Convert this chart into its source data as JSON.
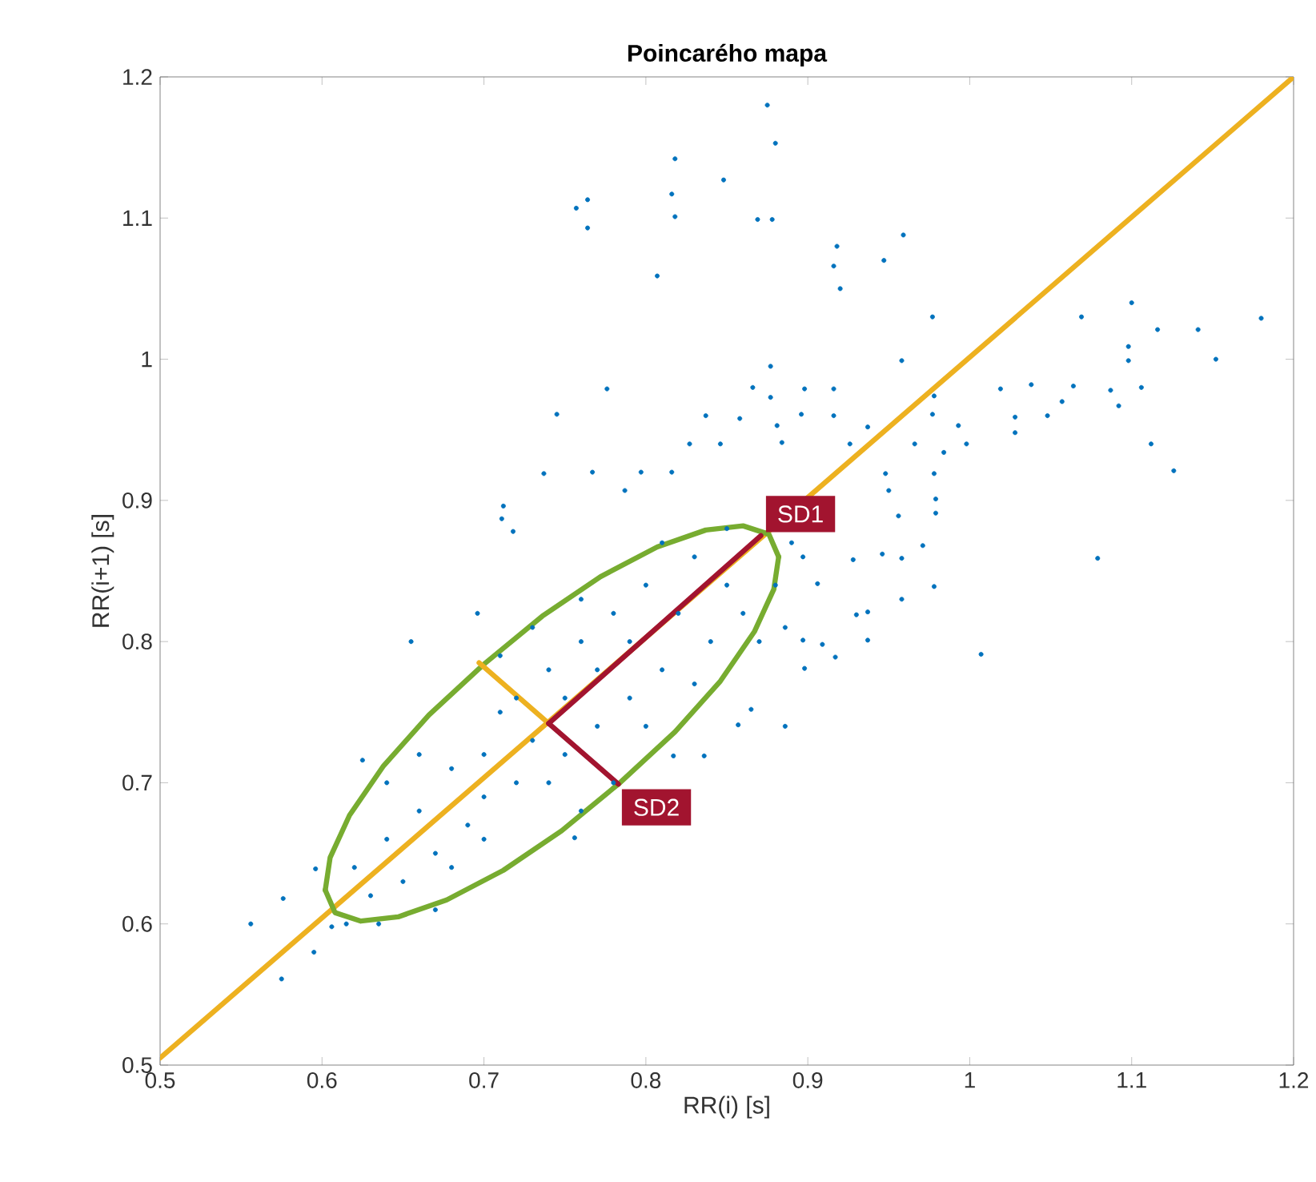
{
  "chart_data": {
    "type": "scatter",
    "title": "Poincarého mapa",
    "xlabel": "RR(i) [s]",
    "ylabel": "RR(i+1) [s]",
    "xlim": [
      0.5,
      1.2
    ],
    "ylim": [
      0.5,
      1.2
    ],
    "xticks": [
      0.5,
      0.6,
      0.7,
      0.8,
      0.9,
      1,
      1.1,
      1.2
    ],
    "yticks": [
      0.5,
      0.6,
      0.7,
      0.8,
      0.9,
      1,
      1.1,
      1.2
    ],
    "series": [
      {
        "color": "#0072bd",
        "x": [
          0.875,
          0.88,
          0.818,
          0.848,
          0.757,
          0.764,
          0.764,
          0.816,
          0.818,
          0.869,
          0.878,
          0.807,
          0.918,
          0.916,
          0.92,
          0.947,
          0.959,
          0.977,
          1.069,
          1.1,
          1.116,
          1.141,
          1.18,
          1.098,
          1.098,
          1.152,
          0.958,
          1.019,
          1.038,
          1.064,
          1.087,
          1.106,
          1.092,
          1.057,
          1.048,
          1.028,
          1.028,
          1.112,
          1.126,
          1.079,
          1.007,
          0.998,
          0.993,
          0.978,
          0.977,
          0.984,
          0.966,
          0.978,
          0.979,
          0.979,
          0.971,
          0.978,
          0.958,
          0.937,
          0.93,
          0.937,
          0.958,
          0.946,
          0.928,
          0.956,
          0.95,
          0.948,
          0.937,
          0.926,
          0.916,
          0.916,
          0.896,
          0.898,
          0.877,
          0.866,
          0.877,
          0.858,
          0.837,
          0.776,
          0.745,
          0.827,
          0.846,
          0.881,
          0.884,
          0.737,
          0.767,
          0.787,
          0.797,
          0.816,
          0.712,
          0.711,
          0.718,
          0.897,
          0.909,
          0.898,
          0.917,
          0.886,
          0.906,
          0.897,
          0.556,
          0.575,
          0.576,
          0.595,
          0.596,
          0.606,
          0.615,
          0.635,
          0.625,
          0.655,
          0.696,
          0.756,
          0.836,
          0.817,
          0.857,
          0.865,
          0.886,
          0.63,
          0.64,
          0.65,
          0.66,
          0.67,
          0.68,
          0.69,
          0.7,
          0.7,
          0.71,
          0.72,
          0.72,
          0.73,
          0.74,
          0.75,
          0.75,
          0.76,
          0.77,
          0.77,
          0.78,
          0.79,
          0.79,
          0.8,
          0.81,
          0.82,
          0.83,
          0.84,
          0.85,
          0.86,
          0.66,
          0.68,
          0.71,
          0.74,
          0.76,
          0.8,
          0.83,
          0.85,
          0.87,
          0.88,
          0.64,
          0.7,
          0.78,
          0.73,
          0.81,
          0.89,
          0.62,
          0.67,
          0.76
        ],
        "values": [
          1.18,
          1.153,
          1.142,
          1.127,
          1.107,
          1.113,
          1.093,
          1.117,
          1.101,
          1.099,
          1.099,
          1.059,
          1.08,
          1.066,
          1.05,
          1.07,
          1.088,
          1.03,
          1.03,
          1.04,
          1.021,
          1.021,
          1.029,
          1.009,
          0.999,
          1.0,
          0.999,
          0.979,
          0.982,
          0.981,
          0.978,
          0.98,
          0.967,
          0.97,
          0.96,
          0.959,
          0.948,
          0.94,
          0.921,
          0.859,
          0.791,
          0.94,
          0.953,
          0.974,
          0.961,
          0.934,
          0.94,
          0.919,
          0.901,
          0.891,
          0.868,
          0.839,
          0.83,
          0.821,
          0.819,
          0.801,
          0.859,
          0.862,
          0.858,
          0.889,
          0.907,
          0.919,
          0.952,
          0.94,
          0.979,
          0.96,
          0.961,
          0.979,
          0.995,
          0.98,
          0.973,
          0.958,
          0.96,
          0.979,
          0.961,
          0.94,
          0.94,
          0.953,
          0.941,
          0.919,
          0.92,
          0.907,
          0.92,
          0.92,
          0.896,
          0.887,
          0.878,
          0.801,
          0.798,
          0.781,
          0.789,
          0.81,
          0.841,
          0.86,
          0.6,
          0.561,
          0.618,
          0.58,
          0.639,
          0.598,
          0.6,
          0.6,
          0.716,
          0.8,
          0.82,
          0.661,
          0.719,
          0.719,
          0.741,
          0.752,
          0.74,
          0.62,
          0.66,
          0.63,
          0.68,
          0.65,
          0.71,
          0.67,
          0.72,
          0.69,
          0.75,
          0.7,
          0.76,
          0.73,
          0.78,
          0.72,
          0.76,
          0.8,
          0.74,
          0.78,
          0.82,
          0.76,
          0.8,
          0.84,
          0.78,
          0.82,
          0.86,
          0.8,
          0.84,
          0.82,
          0.72,
          0.64,
          0.79,
          0.7,
          0.83,
          0.74,
          0.77,
          0.88,
          0.8,
          0.84,
          0.7,
          0.66,
          0.7,
          0.81,
          0.87,
          0.87,
          0.64,
          0.61,
          0.68
        ]
      },
      {
        "type": "line",
        "color": "#edb120",
        "x": [
          0.5,
          1.2
        ],
        "values": [
          0.505,
          1.2
        ]
      },
      {
        "type": "line",
        "color": "#77ac30",
        "x": [
          0.602,
          0.605,
          0.617,
          0.638,
          0.666,
          0.7,
          0.736,
          0.772,
          0.807,
          0.837,
          0.86,
          0.876,
          0.882
        ],
        "values": [
          0.624,
          0.647,
          0.677,
          0.712,
          0.748,
          0.784,
          0.818,
          0.846,
          0.867,
          0.879,
          0.882,
          0.876,
          0.86
        ]
      },
      {
        "type": "line",
        "color": "#77ac30",
        "x": [
          0.602,
          0.608,
          0.624,
          0.647,
          0.677,
          0.712,
          0.748,
          0.784,
          0.818,
          0.846,
          0.867,
          0.879,
          0.882
        ],
        "values": [
          0.624,
          0.608,
          0.602,
          0.605,
          0.617,
          0.638,
          0.666,
          0.7,
          0.736,
          0.772,
          0.807,
          0.837,
          0.86
        ]
      },
      {
        "type": "line",
        "color": "#edb120",
        "x": [
          0.697,
          0.74
        ],
        "values": [
          0.785,
          0.742
        ]
      },
      {
        "type": "line",
        "color": "#a2142f",
        "x": [
          0.74,
          0.871
        ],
        "values": [
          0.742,
          0.875
        ]
      },
      {
        "type": "line",
        "color": "#a2142f",
        "x": [
          0.74,
          0.783
        ],
        "values": [
          0.742,
          0.699
        ]
      }
    ],
    "annotations": [
      {
        "text": "SD1",
        "x": 0.871,
        "y": 0.875
      },
      {
        "text": "SD2",
        "x": 0.783,
        "y": 0.699
      }
    ]
  }
}
